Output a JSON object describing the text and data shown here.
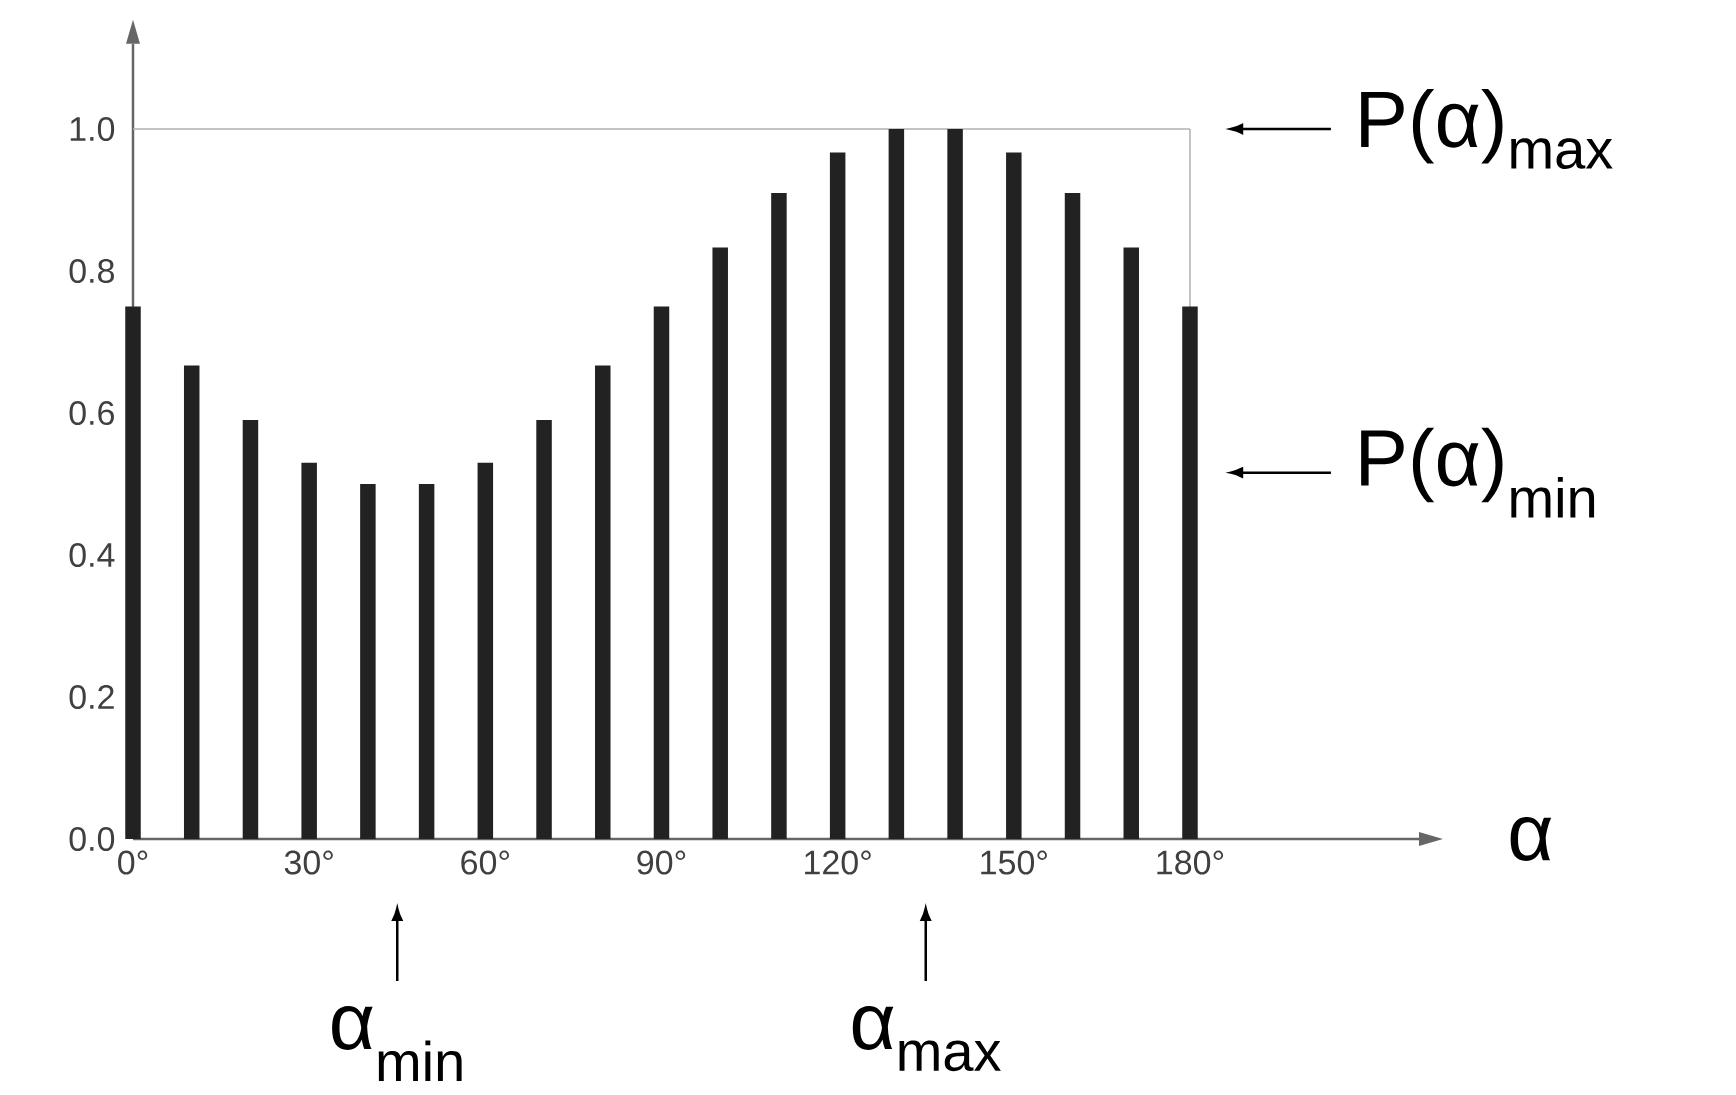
{
  "chart_data": {
    "type": "bar",
    "xlabel": "α",
    "x": [
      0,
      10,
      20,
      30,
      40,
      50,
      60,
      70,
      80,
      90,
      100,
      110,
      120,
      130,
      140,
      150,
      160,
      170,
      180
    ],
    "values": [
      0.75,
      0.667,
      0.59,
      0.53,
      0.5,
      0.5,
      0.53,
      0.59,
      0.667,
      0.75,
      0.833,
      0.91,
      0.967,
      1.0,
      1.0,
      0.967,
      0.91,
      0.833,
      0.75
    ],
    "color": "#222222",
    "xlim": [
      0,
      219
    ],
    "ylim": [
      0,
      1.12
    ],
    "xticks": [
      {
        "value": 0,
        "label": "0°"
      },
      {
        "value": 30,
        "label": "30°"
      },
      {
        "value": 60,
        "label": "60°"
      },
      {
        "value": 90,
        "label": "90°"
      },
      {
        "value": 120,
        "label": "120°"
      },
      {
        "value": 150,
        "label": "150°"
      },
      {
        "value": 180,
        "label": "180°"
      }
    ],
    "yticks": [
      {
        "value": 0,
        "label": "0.0"
      },
      {
        "value": 0.2,
        "label": "0.2"
      },
      {
        "value": 0.4,
        "label": "0.4"
      },
      {
        "value": 0.6,
        "label": "0.6"
      },
      {
        "value": 0.8,
        "label": "0.8"
      },
      {
        "value": 1.0,
        "label": "1.0"
      }
    ],
    "ref_lines": [
      {
        "axis": "y",
        "value": 1.0,
        "color": "#b0b0b0"
      },
      {
        "axis": "x",
        "value": 180,
        "color": "#b0b0b0"
      }
    ],
    "annotations": [
      "P(α)$_{max}$",
      "P(α)$_{min}$",
      "α$_{min}$",
      "α$_{max}$"
    ]
  }
}
